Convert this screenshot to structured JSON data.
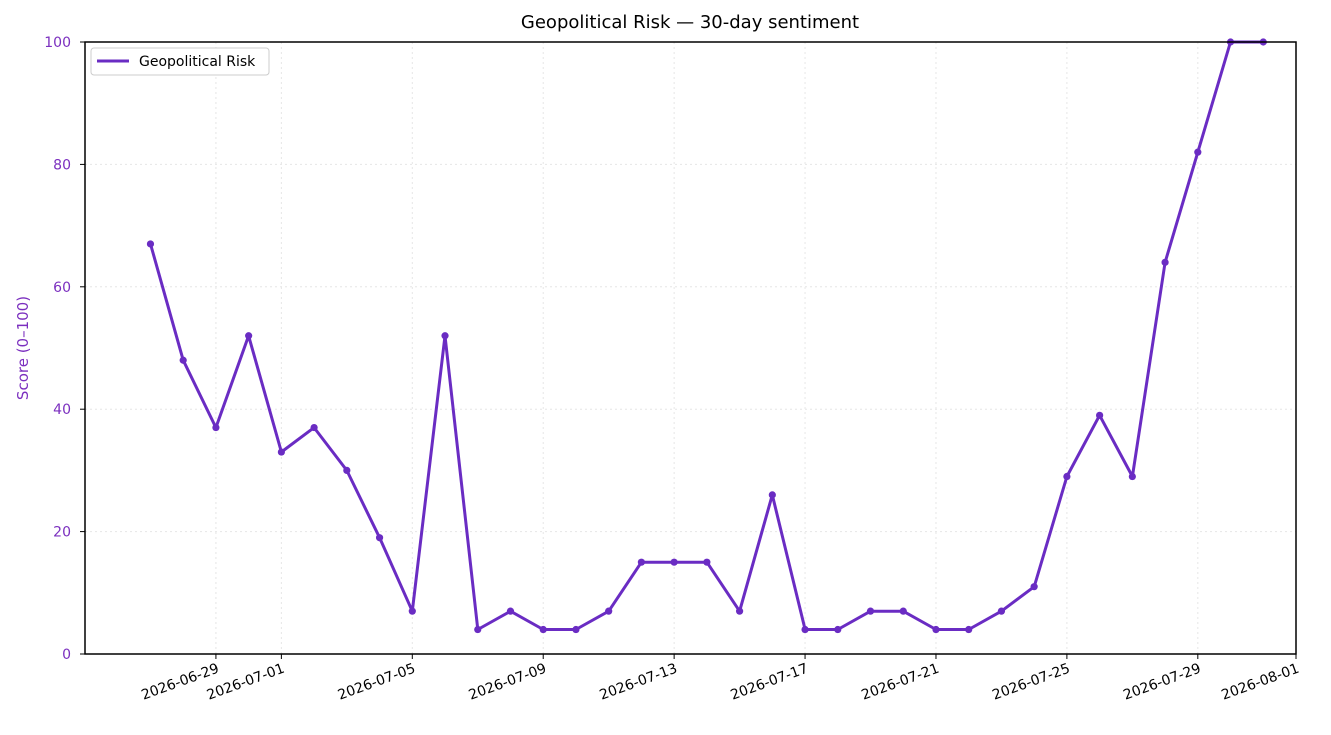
{
  "chart_data": {
    "type": "line",
    "title": "Geopolitical Risk — 30-day sentiment",
    "xlabel": "",
    "ylabel": "Score (0–100)",
    "xlim": [
      "2026-06-25",
      "2026-08-01"
    ],
    "ylim": [
      0,
      100
    ],
    "yticks": [
      "0",
      "20",
      "40",
      "60",
      "80",
      "100"
    ],
    "xticks": [
      "2026-06-29",
      "2026-07-01",
      "2026-07-05",
      "2026-07-09",
      "2026-07-13",
      "2026-07-17",
      "2026-07-21",
      "2026-07-25",
      "2026-07-29",
      "2026-08-01"
    ],
    "grid": true,
    "legend_position": "top-left",
    "colors": {
      "series": "#6a2cc3",
      "axis_text": "#7b2fbf",
      "grid": "#e6e6e6",
      "frame": "#000000"
    },
    "series": [
      {
        "name": "Geopolitical Risk",
        "x": [
          "2026-06-27",
          "2026-06-28",
          "2026-06-29",
          "2026-06-30",
          "2026-07-01",
          "2026-07-02",
          "2026-07-03",
          "2026-07-04",
          "2026-07-05",
          "2026-07-06",
          "2026-07-07",
          "2026-07-08",
          "2026-07-09",
          "2026-07-10",
          "2026-07-11",
          "2026-07-12",
          "2026-07-13",
          "2026-07-14",
          "2026-07-15",
          "2026-07-16",
          "2026-07-17",
          "2026-07-18",
          "2026-07-19",
          "2026-07-20",
          "2026-07-21",
          "2026-07-22",
          "2026-07-23",
          "2026-07-24",
          "2026-07-25",
          "2026-07-26",
          "2026-07-27",
          "2026-07-28",
          "2026-07-29",
          "2026-07-30",
          "2026-07-31"
        ],
        "values": [
          67,
          48,
          37,
          52,
          33,
          37,
          30,
          19,
          7,
          52,
          4,
          7,
          4,
          4,
          7,
          15,
          15,
          15,
          7,
          26,
          4,
          4,
          7,
          7,
          4,
          4,
          7,
          11,
          29,
          39,
          29,
          64,
          82,
          100,
          100
        ]
      }
    ]
  }
}
